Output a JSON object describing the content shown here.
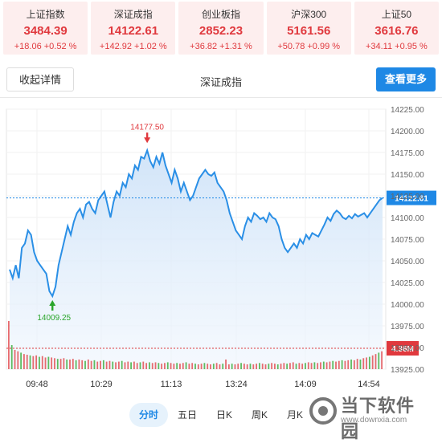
{
  "indices": [
    {
      "name": "上证指数",
      "value": "3484.39",
      "change": "+18.06 +0.52 %"
    },
    {
      "name": "深证成指",
      "value": "14122.61",
      "change": "+142.92 +1.02 %"
    },
    {
      "name": "创业板指",
      "value": "2852.23",
      "change": "+36.82 +1.31 %"
    },
    {
      "name": "沪深300",
      "value": "5161.56",
      "change": "+50.78 +0.99 %"
    },
    {
      "name": "上证50",
      "value": "3616.76",
      "change": "+34.11 +0.95 %"
    }
  ],
  "header": {
    "collapse_label": "收起详情",
    "title": "深证成指",
    "more_label": "查看更多"
  },
  "colors": {
    "up": "#e0393e",
    "down": "#2aa52a",
    "line": "#2a8fe6",
    "accent": "#1e88e5"
  },
  "chart_data": {
    "type": "area",
    "y_ticks": [
      "14225.00",
      "14200.00",
      "14175.00",
      "14150.00",
      "14125.00",
      "14100.00",
      "14075.00",
      "14050.00",
      "14025.00",
      "14000.00",
      "13975.00",
      "13950.00",
      "13925.00"
    ],
    "x_labels": [
      "09:48",
      "10:29",
      "11:13",
      "13:24",
      "14:09",
      "14:54"
    ],
    "ylim": [
      13925,
      14225
    ],
    "current_value": "14122.61",
    "volume_label": "4.36M",
    "high_label": "14177.50",
    "low_label": "14009.25",
    "values": [
      14040,
      14030,
      14045,
      14030,
      14065,
      14070,
      14085,
      14080,
      14060,
      14050,
      14045,
      14040,
      14035,
      14015,
      14009.25,
      14020,
      14045,
      14060,
      14075,
      14090,
      14080,
      14095,
      14105,
      14110,
      14100,
      14115,
      14118,
      14110,
      14105,
      14120,
      14125,
      14130,
      14115,
      14100,
      14118,
      14130,
      14125,
      14140,
      14135,
      14150,
      14145,
      14160,
      14155,
      14170,
      14168,
      14177.5,
      14165,
      14158,
      14170,
      14162,
      14175,
      14160,
      14150,
      14140,
      14155,
      14145,
      14130,
      14140,
      14130,
      14120,
      14125,
      14135,
      14145,
      14150,
      14155,
      14150,
      14148,
      14152,
      14140,
      14135,
      14130,
      14120,
      14105,
      14095,
      14085,
      14080,
      14075,
      14090,
      14100,
      14095,
      14105,
      14102,
      14098,
      14100,
      14095,
      14105,
      14100,
      14098,
      14090,
      14075,
      14065,
      14060,
      14065,
      14070,
      14065,
      14075,
      14070,
      14080,
      14075,
      14082,
      14080,
      14078,
      14085,
      14092,
      14100,
      14096,
      14104,
      14108,
      14105,
      14100,
      14098,
      14102,
      14099,
      14104,
      14101,
      14103,
      14105,
      14100,
      14105,
      14110,
      14115,
      14120,
      14122.61
    ],
    "volume": [
      70,
      35,
      28,
      26,
      24,
      22,
      21,
      20,
      19,
      20,
      18,
      19,
      17,
      18,
      17,
      16,
      15,
      15,
      16,
      14,
      14,
      15,
      13,
      14,
      13,
      12,
      14,
      12,
      13,
      11,
      12,
      13,
      11,
      12,
      11,
      10,
      11,
      12,
      10,
      11,
      10,
      11,
      9,
      10,
      11,
      9,
      10,
      9,
      10,
      9,
      8,
      9,
      10,
      9,
      8,
      9,
      8,
      9,
      10,
      8,
      9,
      8,
      7,
      8,
      9,
      8,
      7,
      8,
      9,
      7,
      8,
      14,
      7,
      8,
      7,
      8,
      9,
      8,
      7,
      8,
      7,
      8,
      9,
      8,
      7,
      8,
      9,
      8,
      7,
      8,
      9,
      8,
      9,
      10,
      8,
      9,
      8,
      9,
      10,
      9,
      10,
      9,
      10,
      11,
      10,
      11,
      12,
      11,
      12,
      13,
      12,
      13,
      14,
      13,
      15,
      14,
      16,
      17,
      18,
      20,
      22,
      24,
      26
    ]
  },
  "tabs": [
    {
      "label": "分时",
      "active": true
    },
    {
      "label": "五日"
    },
    {
      "label": "日K"
    },
    {
      "label": "周K"
    },
    {
      "label": "月K"
    }
  ],
  "watermark": {
    "name": "当下软件园",
    "url": "www.downxia.com"
  }
}
